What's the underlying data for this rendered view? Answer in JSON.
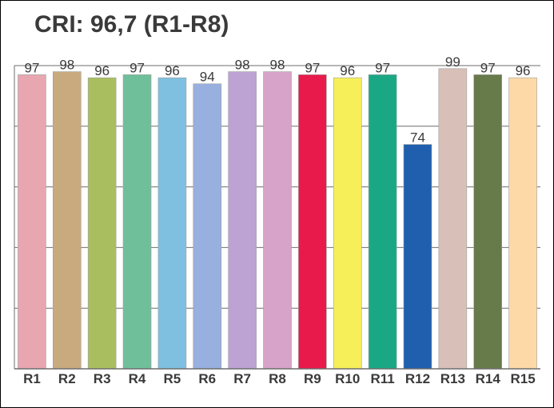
{
  "chart_data": {
    "type": "bar",
    "title": "CRI: 96,7 (R1-R8)",
    "categories": [
      "R1",
      "R2",
      "R3",
      "R4",
      "R5",
      "R6",
      "R7",
      "R8",
      "R9",
      "R10",
      "R11",
      "R12",
      "R13",
      "R14",
      "R15"
    ],
    "values": [
      97,
      98,
      96,
      97,
      96,
      94,
      98,
      98,
      97,
      96,
      97,
      74,
      99,
      97,
      96
    ],
    "colors": [
      "#e8a7b0",
      "#c9aa7f",
      "#a9bf5f",
      "#6fc09a",
      "#7fc0e0",
      "#98b0e0",
      "#bda3d4",
      "#d8a3c8",
      "#e81a4b",
      "#f7ef5a",
      "#1aa884",
      "#1f5fae",
      "#d8c0b8",
      "#677a4a",
      "#fdd9a8"
    ],
    "ylim": [
      0,
      100
    ],
    "grid": true,
    "legend": "none"
  }
}
